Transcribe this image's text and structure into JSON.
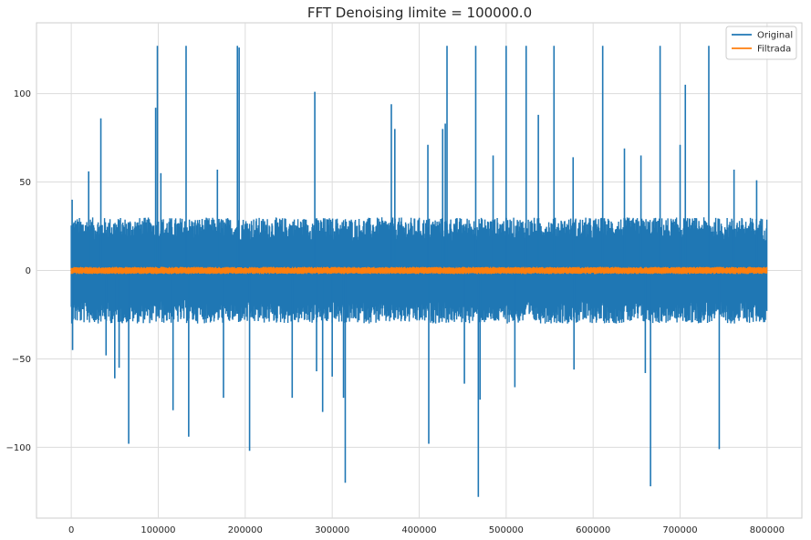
{
  "chart_data": {
    "type": "line",
    "title": "FFT Denoising limite = 100000.0",
    "xlabel": "",
    "ylabel": "",
    "xlim": [
      -40000,
      840000
    ],
    "ylim": [
      -140,
      140
    ],
    "x_ticks": [
      0,
      100000,
      200000,
      300000,
      400000,
      500000,
      600000,
      700000,
      800000
    ],
    "y_ticks": [
      -100,
      -50,
      0,
      50,
      100
    ],
    "grid": true,
    "legend": {
      "position": "top-right",
      "entries": [
        "Original",
        "Filtrada"
      ]
    },
    "series": [
      {
        "name": "Original",
        "color": "#1f77b4",
        "x_range": [
          0,
          800000
        ],
        "noise_envelope": {
          "upper": 30,
          "lower": -30
        },
        "spikes": [
          {
            "x": 1000,
            "y": 40
          },
          {
            "x": 1500,
            "y": -45
          },
          {
            "x": 20000,
            "y": 56
          },
          {
            "x": 34000,
            "y": 86
          },
          {
            "x": 40000,
            "y": -48
          },
          {
            "x": 50000,
            "y": -61
          },
          {
            "x": 55000,
            "y": -55
          },
          {
            "x": 66000,
            "y": -98
          },
          {
            "x": 97000,
            "y": 92
          },
          {
            "x": 99000,
            "y": 127
          },
          {
            "x": 103000,
            "y": 55
          },
          {
            "x": 117000,
            "y": -79
          },
          {
            "x": 132000,
            "y": 127
          },
          {
            "x": 135000,
            "y": -94
          },
          {
            "x": 168000,
            "y": 57
          },
          {
            "x": 175000,
            "y": -72
          },
          {
            "x": 191000,
            "y": 127
          },
          {
            "x": 193000,
            "y": 126
          },
          {
            "x": 205000,
            "y": -102
          },
          {
            "x": 254000,
            "y": -72
          },
          {
            "x": 280000,
            "y": 101
          },
          {
            "x": 282000,
            "y": -57
          },
          {
            "x": 289000,
            "y": -80
          },
          {
            "x": 300000,
            "y": -60
          },
          {
            "x": 315000,
            "y": -120
          },
          {
            "x": 313000,
            "y": -72
          },
          {
            "x": 368000,
            "y": 94
          },
          {
            "x": 372000,
            "y": 80
          },
          {
            "x": 410000,
            "y": 71
          },
          {
            "x": 411000,
            "y": -98
          },
          {
            "x": 427000,
            "y": 80
          },
          {
            "x": 430000,
            "y": 83
          },
          {
            "x": 432000,
            "y": 127
          },
          {
            "x": 452000,
            "y": -64
          },
          {
            "x": 465000,
            "y": 127
          },
          {
            "x": 468000,
            "y": -128
          },
          {
            "x": 470000,
            "y": -73
          },
          {
            "x": 485000,
            "y": 65
          },
          {
            "x": 500000,
            "y": 127
          },
          {
            "x": 510000,
            "y": -66
          },
          {
            "x": 523000,
            "y": 127
          },
          {
            "x": 537000,
            "y": 88
          },
          {
            "x": 555000,
            "y": 127
          },
          {
            "x": 577000,
            "y": 64
          },
          {
            "x": 578000,
            "y": -56
          },
          {
            "x": 611000,
            "y": 127
          },
          {
            "x": 636000,
            "y": 69
          },
          {
            "x": 655000,
            "y": 65
          },
          {
            "x": 660000,
            "y": -58
          },
          {
            "x": 666000,
            "y": -122
          },
          {
            "x": 677000,
            "y": 127
          },
          {
            "x": 700000,
            "y": 71
          },
          {
            "x": 706000,
            "y": 105
          },
          {
            "x": 733000,
            "y": 127
          },
          {
            "x": 745000,
            "y": -101
          },
          {
            "x": 762000,
            "y": 57
          },
          {
            "x": 788000,
            "y": 51
          }
        ]
      },
      {
        "name": "Filtrada",
        "color": "#ff7f0e",
        "x_range": [
          0,
          800000
        ],
        "noise_envelope": {
          "upper": 2,
          "lower": -2
        }
      }
    ]
  }
}
